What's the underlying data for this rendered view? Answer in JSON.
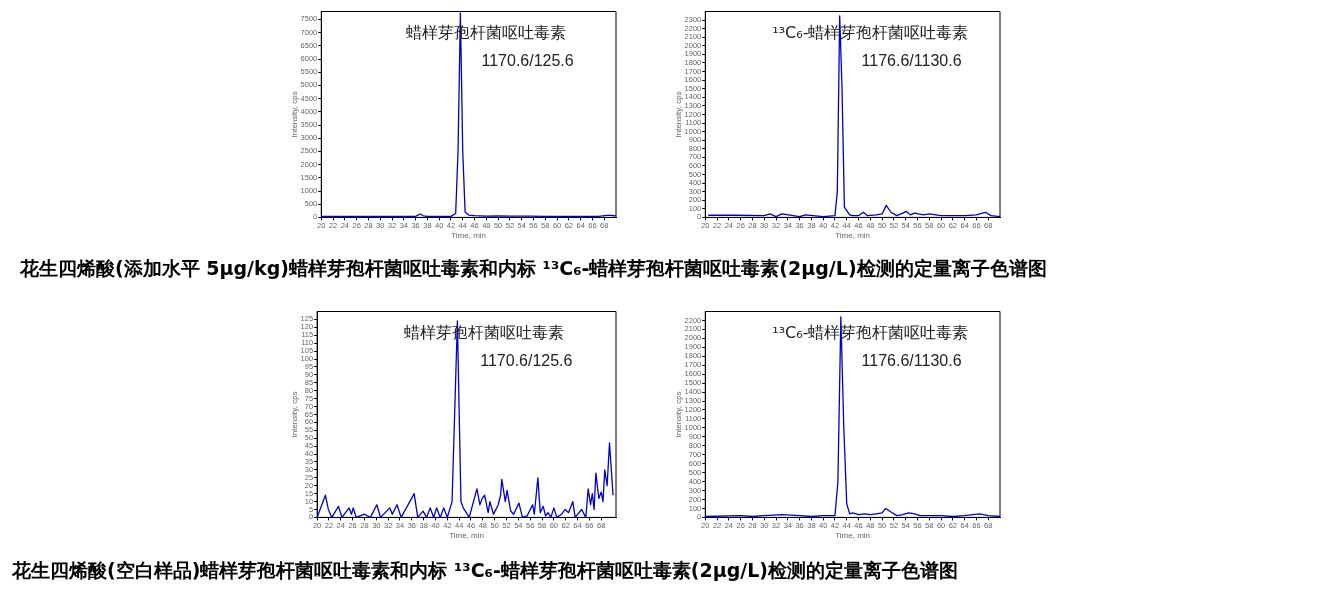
{
  "chart_data": [
    {
      "type": "line",
      "title": "蜡样芽孢杆菌呕吐毒素",
      "subtitle": "1170.6/125.6",
      "xlabel": "Time, min",
      "ylabel": "Intensity, cps",
      "legend": false,
      "grid": false,
      "line_style": "solid",
      "annotations": [
        "花生四烯酸(添加水平 5μg/kg)蜡样芽孢杆菌呕吐毒素和内标 ¹³C₆-蜡样芽孢杆菌呕吐毒素(2μg/L)检测的定量离子色谱图"
      ],
      "xlim": [
        20,
        70
      ],
      "xticks": [
        20,
        22,
        24,
        26,
        28,
        30,
        32,
        34,
        36,
        38,
        40,
        42,
        44,
        46,
        48,
        50,
        52,
        54,
        56,
        58,
        60,
        62,
        64,
        66,
        68
      ],
      "ylim": [
        0,
        7800
      ],
      "yticks": [
        0,
        500,
        1000,
        1500,
        2000,
        2500,
        3000,
        3500,
        4000,
        4500,
        5000,
        5500,
        6000,
        6500,
        7000,
        7500
      ],
      "series": [
        {
          "color": "#0000cc",
          "x": [
            20,
            22,
            25,
            28,
            31,
            34,
            36,
            36.8,
            37.3,
            38,
            40,
            42,
            42.8,
            43.2,
            43.6,
            44.0,
            44.4,
            45,
            46,
            48,
            50,
            52,
            55,
            58,
            61,
            64,
            67,
            68.5,
            69,
            70
          ],
          "values": [
            40,
            40,
            40,
            40,
            40,
            40,
            40,
            130,
            60,
            40,
            40,
            40,
            150,
            2500,
            7750,
            2500,
            200,
            90,
            70,
            50,
            60,
            50,
            50,
            40,
            40,
            40,
            40,
            80,
            80,
            60
          ]
        }
      ]
    },
    {
      "type": "line",
      "title": "¹³C₆-蜡样芽孢杆菌呕吐毒素",
      "subtitle": "1176.6/1130.6",
      "xlabel": "Time, min",
      "ylabel": "Intensity, cps",
      "legend": false,
      "grid": false,
      "line_style": "solid",
      "xlim": [
        20,
        70
      ],
      "xticks": [
        20,
        22,
        24,
        26,
        28,
        30,
        32,
        34,
        36,
        38,
        40,
        42,
        44,
        46,
        48,
        50,
        52,
        54,
        56,
        58,
        60,
        62,
        64,
        66,
        68
      ],
      "ylim": [
        0,
        2400
      ],
      "yticks": [
        0,
        100,
        200,
        300,
        400,
        500,
        600,
        700,
        800,
        900,
        1000,
        1100,
        1200,
        1300,
        1400,
        1500,
        1600,
        1700,
        1800,
        1900,
        2000,
        2100,
        2200,
        2300
      ],
      "series": [
        {
          "color": "#0000cc",
          "x": [
            20.5,
            25,
            30,
            31,
            32,
            33,
            36,
            37,
            40,
            42,
            42.4,
            42.8,
            43.2,
            43.6,
            44,
            44.5,
            45,
            46,
            46.8,
            47.5,
            49,
            50,
            50.7,
            51.5,
            52.5,
            53.5,
            54.1,
            54.8,
            55.5,
            57,
            58,
            60,
            62,
            64,
            66,
            67.5,
            68.5,
            70
          ],
          "values": [
            25,
            25,
            20,
            40,
            10,
            40,
            10,
            30,
            10,
            20,
            300,
            2350,
            1500,
            120,
            80,
            30,
            20,
            20,
            60,
            20,
            30,
            40,
            140,
            60,
            20,
            50,
            70,
            30,
            50,
            30,
            40,
            20,
            20,
            20,
            30,
            60,
            20,
            10
          ]
        }
      ]
    },
    {
      "type": "line",
      "title": "蜡样芽孢杆菌呕吐毒素",
      "subtitle": "1170.6/125.6",
      "xlabel": "Time, min",
      "ylabel": "Intensity, cps",
      "legend": false,
      "grid": false,
      "line_style": "solid",
      "annotations": [
        "花生四烯酸(空白样品)蜡样芽孢杆菌呕吐毒素和内标 ¹³C₆-蜡样芽孢杆菌呕吐毒素(2μg/L)检测的定量离子色谱图"
      ],
      "xlim": [
        20,
        70.5
      ],
      "xticks": [
        20,
        22,
        24,
        26,
        28,
        30,
        32,
        34,
        36,
        38,
        40,
        42,
        44,
        46,
        48,
        50,
        52,
        54,
        56,
        58,
        60,
        62,
        64,
        66,
        68
      ],
      "ylim": [
        0,
        130
      ],
      "yticks": [
        0,
        5,
        10,
        15,
        20,
        25,
        30,
        35,
        40,
        45,
        50,
        55,
        60,
        65,
        70,
        75,
        80,
        85,
        90,
        95,
        100,
        105,
        110,
        115,
        120,
        125
      ],
      "series": [
        {
          "color": "#0000cc",
          "x": [
            20,
            21.4,
            21.9,
            22.5,
            23.6,
            24.2,
            25.4,
            25.8,
            26.1,
            26.6,
            28,
            29,
            30.1,
            30.7,
            32.3,
            32.7,
            33.5,
            34.2,
            36.4,
            37,
            37.9,
            38.5,
            39.1,
            39.7,
            40.2,
            40.8,
            41.4,
            42,
            42.8,
            43.7,
            44.3,
            44.7,
            45.7,
            47,
            47.5,
            47.9,
            48.3,
            48.9,
            49.2,
            49.8,
            50.6,
            51,
            51.2,
            51.8,
            52.1,
            52.7,
            53.2,
            54.1,
            54.7,
            55.5,
            56.4,
            56.7,
            57.3,
            57.7,
            58.2,
            58.6,
            59,
            59.5,
            60,
            60.5,
            61.3,
            61.9,
            62.5,
            63.2,
            63.6,
            64.7,
            65.4,
            65.8,
            66.2,
            66.5,
            66.8,
            67.1,
            67.6,
            68,
            68.3,
            68.6,
            69,
            69.4,
            70
          ],
          "values": [
            0,
            14,
            5,
            0,
            7,
            0,
            6,
            2,
            6,
            0,
            2,
            0,
            8,
            0,
            6,
            2,
            8,
            0,
            15,
            0,
            4,
            0,
            6,
            0,
            6,
            0,
            6,
            0,
            10,
            124,
            10,
            6,
            0,
            18,
            8,
            12,
            14,
            3,
            10,
            2,
            8,
            14,
            24,
            10,
            17,
            4,
            2,
            9,
            0,
            1,
            8,
            2,
            25,
            3,
            7,
            1,
            3,
            0,
            6,
            0,
            2,
            5,
            3,
            10,
            0,
            5,
            0,
            18,
            8,
            15,
            5,
            28,
            12,
            16,
            10,
            30,
            20,
            47,
            14
          ]
        }
      ]
    },
    {
      "type": "line",
      "title": "¹³C₆-蜡样芽孢杆菌呕吐毒素",
      "subtitle": "1176.6/1130.6",
      "xlabel": "Time, min",
      "ylabel": "Intensity, cps",
      "legend": false,
      "grid": false,
      "line_style": "solid",
      "xlim": [
        20,
        70
      ],
      "xticks": [
        20,
        22,
        24,
        26,
        28,
        30,
        32,
        34,
        36,
        38,
        40,
        42,
        44,
        46,
        48,
        50,
        52,
        54,
        56,
        58,
        60,
        62,
        64,
        66,
        68
      ],
      "ylim": [
        0,
        2300
      ],
      "yticks": [
        0,
        100,
        200,
        300,
        400,
        500,
        600,
        700,
        800,
        900,
        1000,
        1100,
        1200,
        1300,
        1400,
        1500,
        1600,
        1700,
        1800,
        1900,
        2000,
        2100,
        2200
      ],
      "series": [
        {
          "color": "#0000cc",
          "x": [
            20,
            26,
            28,
            30,
            33,
            36,
            38,
            40,
            42,
            42.5,
            43,
            43.5,
            44,
            44.5,
            45,
            46,
            47,
            48,
            49,
            50,
            50.6,
            51.5,
            52.5,
            53.5,
            54.5,
            55.5,
            56.5,
            58,
            60,
            62,
            64,
            66.5,
            68,
            70
          ],
          "values": [
            10,
            20,
            10,
            20,
            30,
            20,
            10,
            20,
            20,
            400,
            2240,
            1000,
            150,
            40,
            50,
            30,
            40,
            30,
            40,
            50,
            100,
            60,
            20,
            30,
            50,
            40,
            20,
            20,
            20,
            10,
            20,
            40,
            20,
            10
          ]
        }
      ]
    }
  ]
}
